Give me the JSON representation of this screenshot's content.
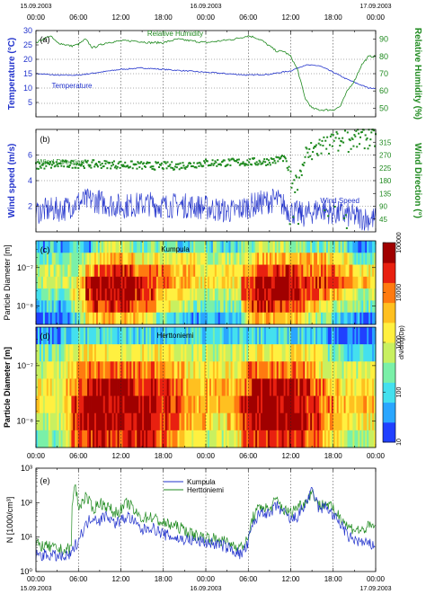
{
  "chart_data": [
    {
      "type": "line",
      "panel_label": "(a)",
      "top_ticks": [
        "00:00",
        "06:00",
        "12:00",
        "18:00",
        "00:00",
        "06:00",
        "12:00",
        "18:00",
        "00:00"
      ],
      "top_dates": [
        "15.09.2003",
        "16.09.2003",
        "17.09.2003"
      ],
      "xlim": [
        0,
        48
      ],
      "ylabel_left": "Temperature (°C)",
      "ylim_left": [
        0,
        30
      ],
      "yticks_left": [
        "5",
        "10",
        "15",
        "20",
        "25",
        "30"
      ],
      "ylabel_right": "Relative Humidity (%)",
      "ylim_right": [
        45,
        95
      ],
      "yticks_right": [
        "50",
        "60",
        "70",
        "80",
        "90"
      ],
      "series": [
        {
          "name": "Temperature",
          "axis": "left",
          "color": "#2233cc",
          "x": [
            0,
            3,
            6,
            9,
            12,
            15,
            18,
            21,
            24,
            27,
            30,
            33,
            36,
            38,
            40,
            42,
            44,
            46,
            47
          ],
          "values": [
            15,
            14.5,
            14.5,
            15.5,
            16.5,
            17,
            16.5,
            16,
            15.5,
            15,
            14.5,
            14.8,
            16,
            18,
            17.8,
            15.5,
            13,
            11,
            10
          ]
        },
        {
          "name": "Relative Humidity",
          "axis": "right",
          "color": "#1f8a1f",
          "x": [
            0,
            1,
            2,
            3,
            5,
            6,
            7,
            8,
            10,
            12,
            14,
            16,
            18,
            20,
            22,
            24,
            26,
            28,
            30,
            31,
            32,
            33,
            34,
            35,
            36,
            37,
            38,
            39,
            40,
            41,
            42,
            43,
            44,
            45,
            46,
            47
          ],
          "values": [
            88,
            90,
            92,
            88,
            86,
            87,
            90,
            85,
            88,
            89,
            89,
            88,
            88,
            90,
            89,
            88,
            89,
            90,
            92,
            91,
            89,
            86,
            83,
            83,
            80,
            72,
            56,
            50,
            49,
            49,
            49,
            51,
            60,
            66,
            75,
            80
          ]
        }
      ]
    },
    {
      "type": "scatter",
      "panel_label": "(b)",
      "xlim": [
        0,
        48
      ],
      "ylabel_left": "Wind speed (m/s)",
      "ylim_left": [
        0,
        8
      ],
      "yticks_left": [
        "2",
        "4",
        "6"
      ],
      "ylabel_right": "Wind Direction (°)",
      "ylim_right": [
        0,
        360
      ],
      "yticks_right": [
        "45",
        "90",
        "135",
        "180",
        "225",
        "270",
        "315"
      ],
      "series": [
        {
          "name": "Wind Direction",
          "axis": "right",
          "color": "#1f8a1f",
          "x": [
            0,
            4,
            8,
            12,
            16,
            20,
            24,
            28,
            32,
            34,
            35,
            36,
            37,
            38,
            40,
            42,
            44,
            46,
            47
          ],
          "values": [
            232,
            238,
            238,
            236,
            232,
            232,
            242,
            244,
            246,
            252,
            262,
            200,
            160,
            262,
            300,
            312,
            320,
            330,
            332
          ]
        },
        {
          "name": "Wind Speed",
          "axis": "left",
          "color": "#2233cc",
          "x": [
            0,
            2,
            4,
            6,
            8,
            10,
            12,
            14,
            16,
            18,
            20,
            22,
            24,
            26,
            28,
            30,
            32,
            34,
            36,
            38,
            40,
            42,
            44,
            46,
            47
          ],
          "values": [
            1.6,
            1.7,
            1.8,
            2.3,
            2.5,
            2.2,
            2.0,
            2.1,
            2.2,
            2.0,
            2.1,
            2.0,
            1.9,
            1.7,
            1.6,
            2.0,
            2.3,
            2.5,
            1.6,
            1.3,
            1.8,
            1.5,
            1.3,
            1.1,
            1.0
          ]
        }
      ]
    },
    {
      "type": "heatmap",
      "panel_label": "(c)",
      "title": "Kumpula",
      "ylabel": "Particle Diameter [m]",
      "yticks": [
        "10⁻⁸",
        "10⁻⁷"
      ],
      "colorbar_label": "dN/dlog(Dp)",
      "colorbar_ticks": [
        "10",
        "100",
        "1000",
        "10000",
        "100000"
      ],
      "high_activity_hours": [
        [
          6,
          18
        ],
        [
          30,
          40
        ]
      ],
      "levels": [
        [
          1,
          1,
          2,
          1,
          1,
          3,
          2,
          1,
          3,
          4,
          4,
          4,
          4,
          3,
          3,
          3,
          3,
          3,
          3,
          3,
          2,
          2,
          3,
          3,
          2,
          3,
          2,
          2,
          2,
          3,
          3,
          4,
          4,
          4,
          4,
          3,
          3,
          3,
          3,
          3,
          3,
          3,
          3,
          3,
          2,
          1,
          1,
          1
        ],
        [
          2,
          3,
          3,
          3,
          3,
          3,
          3,
          4,
          5,
          5,
          6,
          6,
          6,
          6,
          5,
          5,
          5,
          5,
          5,
          5,
          5,
          5,
          5,
          4,
          4,
          4,
          4,
          4,
          4,
          5,
          5,
          6,
          6,
          6,
          6,
          6,
          6,
          6,
          6,
          6,
          6,
          5,
          5,
          5,
          4,
          3,
          3,
          3
        ],
        [
          3,
          4,
          4,
          4,
          4,
          4,
          5,
          6,
          7,
          8,
          8,
          8,
          8,
          8,
          7,
          7,
          7,
          7,
          7,
          6,
          6,
          6,
          6,
          5,
          5,
          5,
          5,
          5,
          5,
          6,
          7,
          8,
          8,
          8,
          8,
          8,
          8,
          7,
          7,
          7,
          7,
          7,
          7,
          6,
          6,
          5,
          5,
          5
        ],
        [
          3,
          4,
          4,
          4,
          4,
          5,
          6,
          8,
          9,
          9,
          9,
          9,
          9,
          9,
          8,
          8,
          8,
          7,
          7,
          6,
          6,
          6,
          5,
          5,
          5,
          5,
          5,
          5,
          5,
          7,
          8,
          9,
          9,
          9,
          9,
          9,
          9,
          8,
          8,
          8,
          8,
          8,
          8,
          7,
          7,
          6,
          6,
          5
        ],
        [
          2,
          3,
          3,
          3,
          3,
          5,
          6,
          8,
          9,
          9,
          9,
          9,
          9,
          9,
          8,
          8,
          8,
          6,
          6,
          5,
          5,
          5,
          4,
          4,
          4,
          4,
          4,
          4,
          4,
          7,
          8,
          9,
          9,
          9,
          9,
          9,
          9,
          8,
          7,
          7,
          7,
          6,
          6,
          5,
          5,
          4,
          4,
          4
        ],
        [
          1,
          2,
          2,
          1,
          1,
          4,
          5,
          7,
          8,
          8,
          8,
          8,
          8,
          8,
          7,
          7,
          7,
          5,
          5,
          4,
          4,
          4,
          3,
          3,
          3,
          3,
          3,
          3,
          3,
          6,
          8,
          8,
          8,
          8,
          8,
          8,
          8,
          7,
          6,
          6,
          5,
          5,
          4,
          3,
          3,
          3,
          3,
          3
        ],
        [
          0,
          1,
          1,
          0,
          0,
          2,
          3,
          5,
          6,
          6,
          6,
          6,
          6,
          6,
          5,
          5,
          5,
          3,
          3,
          2,
          2,
          2,
          1,
          1,
          1,
          1,
          1,
          1,
          2,
          4,
          6,
          6,
          6,
          6,
          6,
          6,
          6,
          5,
          4,
          4,
          3,
          3,
          2,
          2,
          2,
          1,
          1,
          1
        ]
      ]
    },
    {
      "type": "heatmap",
      "panel_label": "(d)",
      "title": "Herttoniemi",
      "ylabel": "Particle Diameter [m]",
      "yticks": [
        "10⁻⁸",
        "10⁻⁷"
      ],
      "colorbar_label": "dN/dlog(Dp)",
      "colorbar_ticks": [
        "10",
        "100",
        "1000",
        "10000",
        "100000"
      ],
      "high_activity_hours": [
        [
          6,
          20
        ],
        [
          30,
          42
        ]
      ],
      "levels": [
        [
          1,
          1,
          1,
          1,
          2,
          2,
          2,
          2,
          2,
          2,
          2,
          2,
          2,
          2,
          2,
          2,
          2,
          2,
          2,
          2,
          2,
          2,
          2,
          2,
          2,
          2,
          2,
          2,
          2,
          2,
          2,
          2,
          2,
          2,
          2,
          2,
          2,
          2,
          2,
          2,
          2,
          1,
          0,
          0,
          0,
          0,
          0,
          0
        ],
        [
          3,
          3,
          3,
          3,
          4,
          4,
          5,
          5,
          5,
          5,
          5,
          5,
          5,
          5,
          5,
          5,
          5,
          5,
          5,
          5,
          4,
          4,
          4,
          4,
          4,
          4,
          4,
          4,
          4,
          4,
          5,
          5,
          5,
          5,
          5,
          5,
          5,
          5,
          5,
          5,
          4,
          3,
          3,
          2,
          2,
          2,
          2,
          2
        ],
        [
          4,
          4,
          4,
          4,
          5,
          6,
          7,
          7,
          7,
          7,
          7,
          7,
          7,
          7,
          7,
          7,
          7,
          7,
          7,
          6,
          6,
          5,
          5,
          5,
          5,
          5,
          5,
          5,
          5,
          6,
          7,
          7,
          7,
          7,
          7,
          7,
          7,
          7,
          6,
          6,
          5,
          5,
          4,
          4,
          4,
          4,
          4,
          4
        ],
        [
          5,
          5,
          5,
          5,
          6,
          7,
          8,
          8,
          9,
          9,
          9,
          9,
          9,
          9,
          8,
          8,
          8,
          8,
          8,
          7,
          7,
          6,
          6,
          6,
          6,
          6,
          6,
          6,
          6,
          7,
          8,
          9,
          9,
          9,
          9,
          9,
          9,
          8,
          8,
          7,
          7,
          6,
          6,
          5,
          5,
          5,
          5,
          5
        ],
        [
          5,
          5,
          5,
          5,
          6,
          8,
          9,
          9,
          9,
          9,
          9,
          9,
          9,
          9,
          9,
          9,
          9,
          8,
          8,
          8,
          7,
          7,
          6,
          6,
          6,
          6,
          6,
          6,
          7,
          8,
          9,
          9,
          9,
          9,
          9,
          9,
          9,
          9,
          8,
          8,
          7,
          7,
          6,
          6,
          6,
          6,
          6,
          6
        ],
        [
          4,
          4,
          4,
          4,
          6,
          8,
          9,
          9,
          9,
          9,
          9,
          9,
          9,
          9,
          9,
          9,
          9,
          8,
          8,
          8,
          7,
          6,
          6,
          6,
          5,
          5,
          5,
          6,
          6,
          8,
          9,
          9,
          9,
          9,
          9,
          9,
          9,
          9,
          8,
          8,
          7,
          6,
          6,
          5,
          5,
          5,
          5,
          5
        ],
        [
          3,
          3,
          3,
          3,
          5,
          7,
          8,
          8,
          8,
          8,
          8,
          8,
          8,
          8,
          8,
          8,
          8,
          7,
          7,
          7,
          6,
          5,
          5,
          5,
          4,
          4,
          4,
          5,
          5,
          7,
          8,
          8,
          8,
          8,
          8,
          8,
          8,
          8,
          7,
          7,
          6,
          5,
          5,
          4,
          4,
          4,
          4,
          4
        ]
      ]
    },
    {
      "type": "line",
      "panel_label": "(e)",
      "ylabel": "N [1000/cm³]",
      "yscale": "log",
      "ylim": [
        1,
        1000
      ],
      "yticks": [
        "10⁰",
        "10¹",
        "10²",
        "10³"
      ],
      "bottom_ticks": [
        "00:00",
        "06:00",
        "12:00",
        "18:00",
        "00:00",
        "06:00",
        "12:00",
        "18:00",
        "00:00"
      ],
      "bottom_dates": [
        "15.09.2003",
        "16.09.2003",
        "17.09.2003"
      ],
      "xlim": [
        0,
        48
      ],
      "legend_loc": "top-right",
      "series": [
        {
          "name": "Kumpula",
          "color": "#2233cc",
          "x": [
            0,
            2,
            4,
            5,
            6,
            7,
            8,
            9,
            10,
            11,
            12,
            13,
            14,
            15,
            16,
            18,
            20,
            22,
            24,
            26,
            28,
            29,
            30,
            31,
            32,
            33,
            34,
            35,
            36,
            37,
            38,
            39,
            40,
            41,
            42,
            43,
            44,
            46,
            47
          ],
          "values": [
            3,
            3,
            2.5,
            3,
            8,
            20,
            40,
            30,
            45,
            25,
            30,
            40,
            25,
            15,
            20,
            12,
            9,
            8,
            7,
            6,
            4,
            3,
            6,
            30,
            60,
            40,
            80,
            50,
            30,
            40,
            80,
            200,
            60,
            80,
            40,
            25,
            10,
            7,
            6
          ]
        },
        {
          "name": "Herttoniemi",
          "color": "#1f8a1f",
          "x": [
            0,
            2,
            4,
            5,
            5.5,
            6,
            7,
            8,
            9,
            10,
            11,
            12,
            13,
            14,
            15,
            16,
            18,
            20,
            22,
            24,
            26,
            28,
            29,
            30,
            31,
            32,
            33,
            34,
            35,
            36,
            37,
            38,
            39,
            40,
            41,
            42,
            43,
            44,
            46,
            47
          ],
          "values": [
            6,
            5,
            4,
            5,
            300,
            60,
            150,
            60,
            100,
            80,
            50,
            60,
            100,
            50,
            35,
            40,
            25,
            20,
            12,
            10,
            8,
            6,
            5,
            8,
            50,
            80,
            60,
            120,
            60,
            50,
            80,
            100,
            200,
            80,
            100,
            60,
            40,
            20,
            15,
            20
          ]
        }
      ]
    }
  ]
}
